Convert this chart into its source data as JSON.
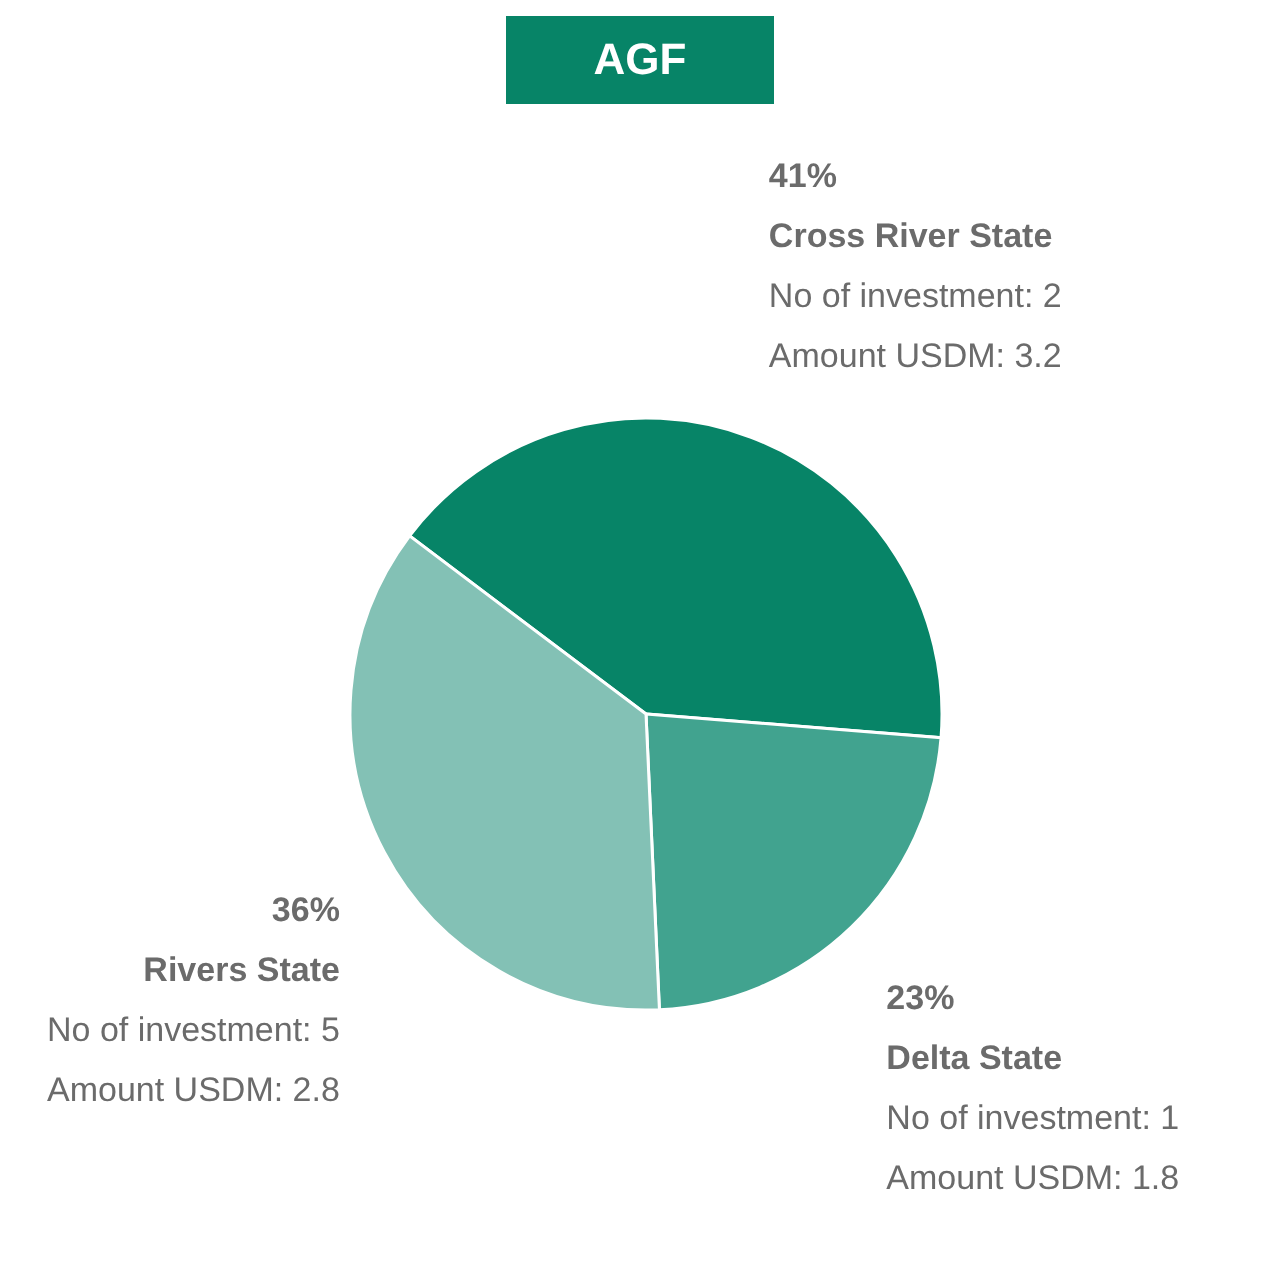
{
  "chart_data": {
    "type": "pie",
    "title": "AGF",
    "categories": [
      "Cross River State",
      "Delta State",
      "Rivers State"
    ],
    "values": [
      41,
      23,
      36
    ],
    "colors": [
      "#078467",
      "#41a38f",
      "#83c1b5"
    ],
    "value_labels": [
      "41%",
      "23%",
      "36%"
    ],
    "annotations": [
      "No of investment: 2",
      "Amount USDM: 3.2",
      "No of investment: 1",
      "Amount USDM: 1.8",
      "No of investment: 5",
      "Amount USDM: 2.8"
    ],
    "legend": false
  }
}
